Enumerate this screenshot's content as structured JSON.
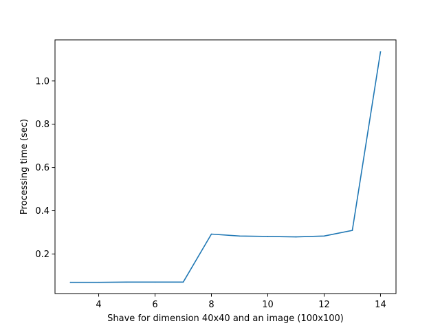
{
  "chart_data": {
    "type": "line",
    "title": "",
    "xlabel": "Shave for dimension 40x40 and an image (100x100)",
    "ylabel": "Processing time (sec)",
    "xlim": [
      2.45,
      14.55
    ],
    "ylim": [
      0.017,
      1.19
    ],
    "xticks": [
      4,
      6,
      8,
      10,
      12,
      14
    ],
    "yticks": [
      0.2,
      0.4,
      0.6,
      0.8,
      1.0
    ],
    "xtick_labels": [
      "4",
      "6",
      "8",
      "10",
      "12",
      "14"
    ],
    "ytick_labels": [
      "0.2",
      "0.4",
      "0.6",
      "0.8",
      "1.0"
    ],
    "grid": false,
    "colors": {
      "line": "#1f77b4",
      "axes": "#000000"
    },
    "series": [
      {
        "x": [
          3,
          4,
          5,
          6,
          7,
          8,
          9,
          10,
          11,
          12,
          13,
          14
        ],
        "y": [
          0.069,
          0.069,
          0.07,
          0.07,
          0.07,
          0.292,
          0.283,
          0.281,
          0.279,
          0.283,
          0.309,
          1.135
        ]
      }
    ]
  }
}
